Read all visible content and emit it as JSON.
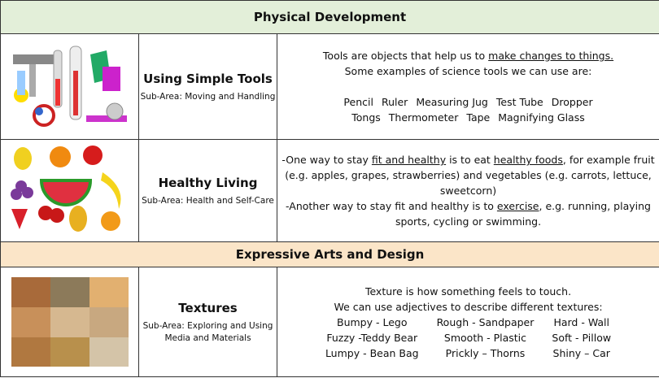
{
  "sections": [
    {
      "title": "Physical Development",
      "rows": [
        {
          "title": "Using Simple Tools",
          "subarea": "Sub-Area: Moving and Handling",
          "text": [
            "Tools are objects that help us to ",
            "make changes to things.",
            "Some examples of science tools we can use are:"
          ],
          "examples": [
            [
              "Pencil",
              "Ruler",
              "Measuring Jug",
              "Test Tube",
              "Dropper"
            ],
            [
              "Tongs",
              "Thermometer",
              "Tape",
              "Magnifying Glass"
            ]
          ]
        },
        {
          "title": "Healthy Living",
          "subarea": "Sub-Area: Health and Self-Care",
          "text": [
            "-One way to stay ",
            "fit and healthy",
            " is to eat ",
            "healthy foods",
            ", for example fruit (e.g. apples, grapes, strawberries) and vegetables (e.g. carrots, lettuce, sweetcorn)",
            "-Another way to stay fit and healthy is to ",
            "exercise",
            ", e.g. running, playing sports, cycling or swimming."
          ]
        }
      ]
    },
    {
      "title": "Expressive Arts and Design",
      "rows": [
        {
          "title": "Textures",
          "subarea": "Sub-Area: Exploring and Using Media and Materials",
          "text": [
            "Texture is how something feels to touch.",
            "We can use adjectives to describe different textures:"
          ],
          "examples": [
            [
              "Bumpy - Lego",
              "Rough - Sandpaper",
              "Hard - Wall"
            ],
            [
              "Fuzzy -Teddy Bear",
              "Smooth - Plastic",
              "Soft - Pillow"
            ],
            [
              "Lumpy - Bean Bag",
              "Prickly – Thorns",
              "Shiny – Car"
            ]
          ]
        }
      ]
    }
  ]
}
